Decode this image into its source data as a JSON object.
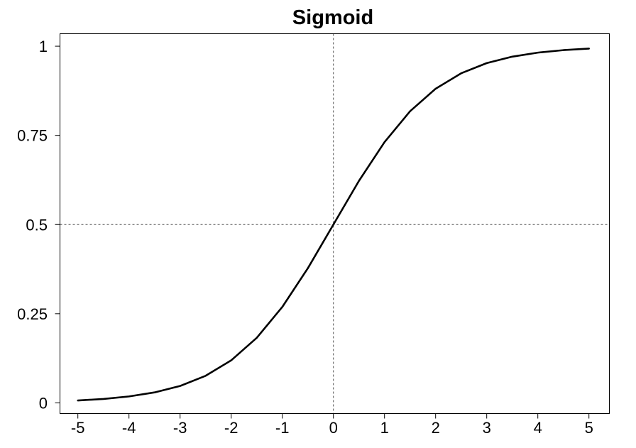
{
  "chart_data": {
    "type": "line",
    "title": "Sigmoid",
    "xlabel": "",
    "ylabel": "",
    "xlim": [
      -5.35,
      5.4
    ],
    "ylim": [
      -0.03,
      1.035
    ],
    "x_ticks": [
      -5,
      -4,
      -3,
      -2,
      -1,
      0,
      1,
      2,
      3,
      4,
      5
    ],
    "x_tick_labels": [
      "-5",
      "-4",
      "-3",
      "-2",
      "-1",
      "0",
      "1",
      "2",
      "3",
      "4",
      "5"
    ],
    "y_ticks": [
      0,
      0.25,
      0.5,
      0.75,
      1
    ],
    "y_tick_labels": [
      "0",
      "0.25",
      "0.5",
      "0.75",
      "1"
    ],
    "grid": false,
    "reference_lines": [
      {
        "axis": "x",
        "value": 0,
        "style": "dashed"
      },
      {
        "axis": "y",
        "value": 0.5,
        "style": "dashed"
      }
    ],
    "series": [
      {
        "color": "#000000",
        "x": [
          -5,
          -4.5,
          -4,
          -3.5,
          -3,
          -2.5,
          -2,
          -1.5,
          -1,
          -0.5,
          0,
          0.5,
          1,
          1.5,
          2,
          2.5,
          3,
          3.5,
          4,
          4.5,
          5
        ],
        "y": [
          0.0067,
          0.011,
          0.018,
          0.0293,
          0.0474,
          0.0759,
          0.1192,
          0.1824,
          0.2689,
          0.3775,
          0.5,
          0.6225,
          0.7311,
          0.8176,
          0.8808,
          0.9241,
          0.9526,
          0.9707,
          0.982,
          0.989,
          0.9933
        ]
      }
    ]
  }
}
